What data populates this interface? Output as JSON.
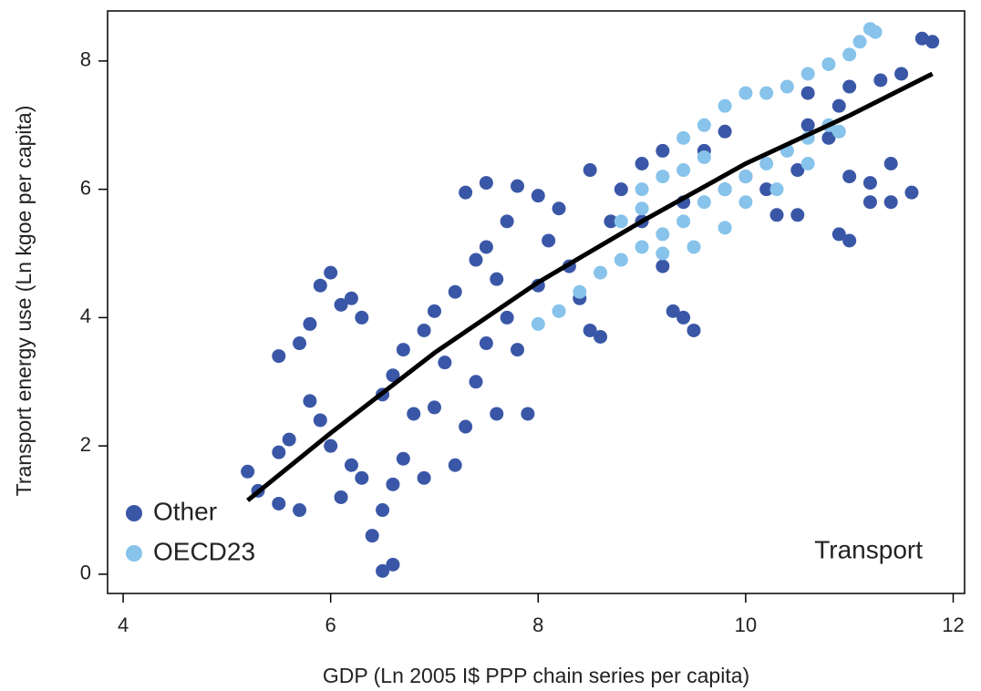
{
  "chart_data": {
    "type": "scatter",
    "x_label": "GDP (Ln 2005 I$ PPP chain series per capita)",
    "y_label": "Transport energy use (Ln kgoe per capita)",
    "annotation": "Transport",
    "xlim": [
      3.85,
      12.11
    ],
    "ylim": [
      -0.3,
      8.78
    ],
    "xticks": [
      4,
      6,
      8,
      10,
      12
    ],
    "yticks": [
      0,
      2,
      4,
      6,
      8
    ],
    "legend_position": "lower left",
    "series": [
      {
        "name": "Other",
        "color": "#3a57a7",
        "x": [
          5.2,
          5.3,
          5.5,
          5.7,
          5.5,
          5.6,
          5.5,
          5.7,
          5.8,
          5.9,
          6.0,
          6.1,
          6.2,
          6.3,
          5.8,
          5.9,
          6.0,
          6.2,
          6.3,
          6.1,
          6.4,
          6.5,
          6.6,
          6.5,
          6.6,
          6.7,
          6.8,
          6.5,
          6.6,
          6.7,
          6.9,
          7.0,
          7.1,
          7.0,
          6.9,
          7.2,
          7.3,
          7.4,
          7.5,
          7.2,
          7.4,
          7.5,
          7.6,
          7.7,
          7.8,
          7.9,
          7.6,
          7.7,
          7.3,
          7.5,
          7.8,
          8.0,
          8.2,
          8.1,
          8.3,
          8.4,
          8.5,
          8.6,
          8.0,
          8.7,
          8.8,
          9.0,
          9.2,
          9.0,
          9.2,
          9.3,
          9.4,
          9.5,
          9.4,
          9.6,
          9.8,
          10.0,
          10.2,
          10.5,
          10.6,
          10.8,
          11.0,
          11.2,
          11.4,
          11.0,
          10.9,
          11.2,
          11.4,
          11.6,
          10.5,
          10.3,
          11.0,
          11.3,
          11.5,
          11.7,
          11.8,
          10.9,
          10.6,
          9.8,
          8.5
        ],
        "y": [
          1.6,
          1.3,
          1.1,
          1.0,
          1.9,
          2.1,
          3.4,
          3.6,
          3.9,
          4.5,
          4.7,
          4.2,
          4.3,
          4.0,
          2.7,
          2.4,
          2.0,
          1.7,
          1.5,
          1.2,
          0.6,
          0.05,
          0.15,
          1.0,
          1.4,
          1.8,
          2.5,
          2.8,
          3.1,
          3.5,
          3.8,
          4.1,
          3.3,
          2.6,
          1.5,
          1.7,
          2.3,
          3.0,
          3.6,
          4.4,
          4.9,
          5.1,
          4.6,
          4.0,
          3.5,
          2.5,
          2.5,
          5.5,
          5.95,
          6.1,
          6.05,
          5.9,
          5.7,
          5.2,
          4.8,
          4.3,
          3.8,
          3.7,
          4.5,
          5.5,
          6.0,
          6.4,
          6.6,
          5.5,
          4.8,
          4.1,
          4.0,
          3.8,
          5.8,
          6.6,
          6.9,
          6.2,
          6.0,
          6.3,
          7.0,
          6.8,
          6.2,
          6.1,
          6.4,
          5.2,
          5.3,
          5.8,
          5.8,
          5.95,
          5.6,
          5.6,
          7.6,
          7.7,
          7.8,
          8.35,
          8.3,
          7.3,
          7.5,
          6.0,
          6.3
        ]
      },
      {
        "name": "OECD23",
        "color": "#87c3ea",
        "x": [
          8.0,
          8.2,
          8.4,
          8.6,
          8.8,
          9.0,
          9.2,
          9.4,
          9.6,
          9.8,
          10.0,
          10.2,
          10.4,
          10.6,
          10.8,
          9.4,
          9.6,
          9.8,
          10.0,
          10.2,
          10.4,
          10.6,
          10.8,
          11.0,
          11.1,
          11.2,
          11.25,
          9.0,
          9.2,
          9.4,
          9.6,
          8.8,
          9.0,
          9.2,
          9.5,
          9.8,
          10.0,
          10.3,
          10.6,
          10.9
        ],
        "y": [
          3.9,
          4.1,
          4.4,
          4.7,
          4.9,
          5.1,
          5.3,
          5.5,
          5.8,
          6.0,
          6.2,
          6.4,
          6.6,
          6.8,
          7.0,
          6.8,
          7.0,
          7.3,
          7.5,
          7.5,
          7.6,
          7.8,
          7.95,
          8.1,
          8.3,
          8.5,
          8.45,
          6.0,
          6.2,
          6.3,
          6.5,
          5.5,
          5.7,
          5.0,
          5.1,
          5.4,
          5.8,
          6.0,
          6.4,
          6.9
        ]
      }
    ],
    "fit_line": {
      "color": "#000000",
      "x": [
        5.2,
        6,
        7,
        8,
        9,
        10,
        11,
        11.8
      ],
      "y": [
        1.15,
        2.2,
        3.45,
        4.55,
        5.5,
        6.4,
        7.15,
        7.8
      ]
    }
  }
}
